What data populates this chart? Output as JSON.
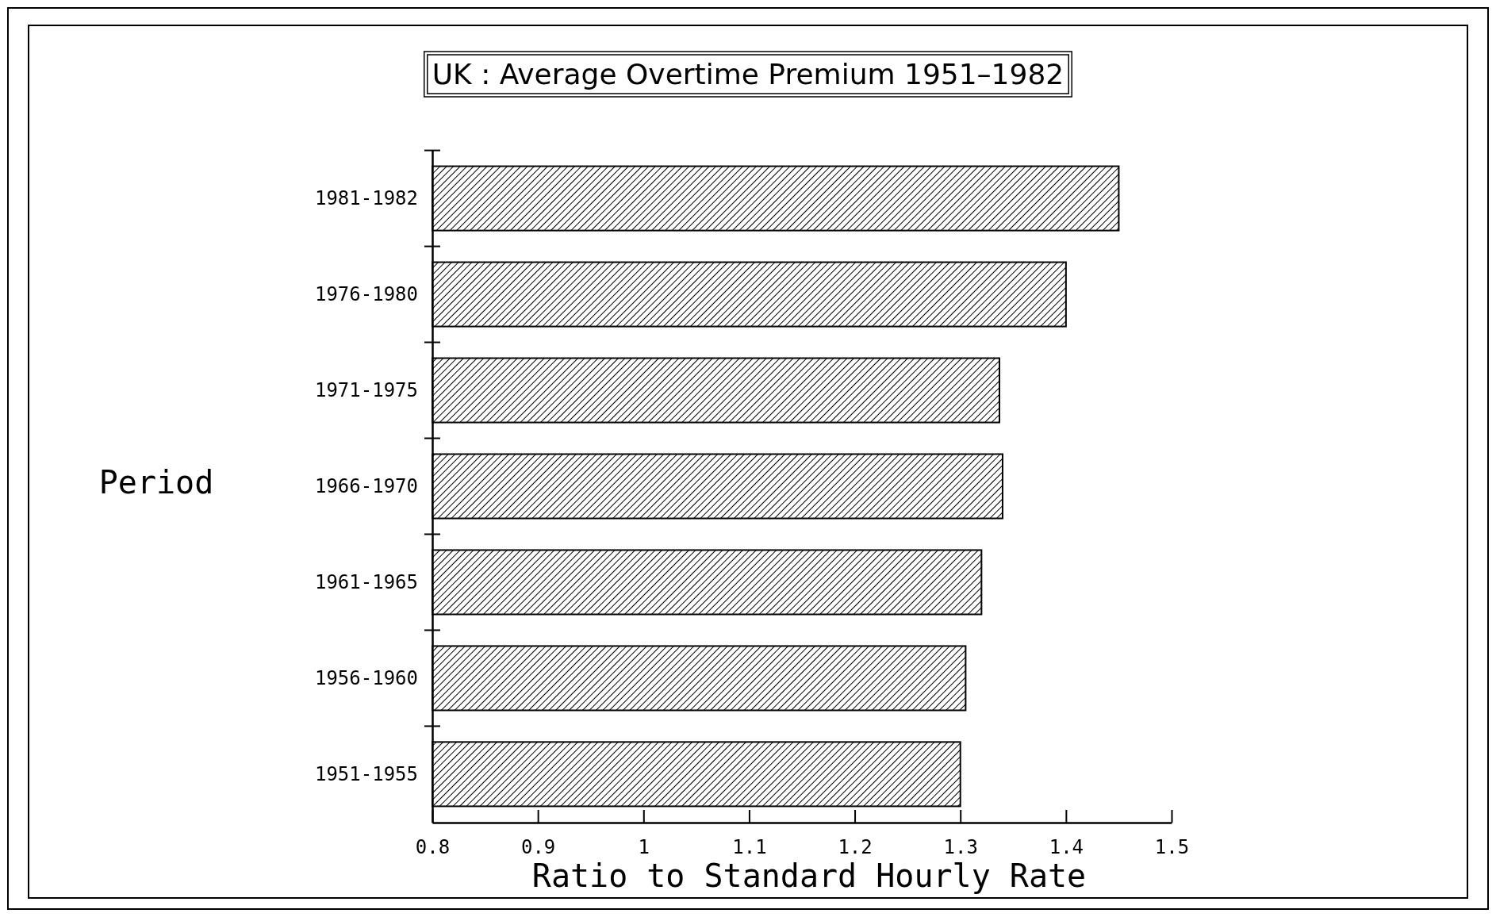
{
  "chart_data": {
    "type": "bar",
    "orientation": "horizontal",
    "title": "UK : Average Overtime Premium 1951–1982",
    "xlabel": "Ratio to Standard Hourly Rate",
    "ylabel": "Period",
    "categories": [
      "1981-1982",
      "1976-1980",
      "1971-1975",
      "1966-1970",
      "1961-1965",
      "1956-1960",
      "1951-1955"
    ],
    "values": [
      1.45,
      1.4,
      1.337,
      1.34,
      1.32,
      1.305,
      1.3
    ],
    "color": "#000000",
    "xlim": [
      0.8,
      1.5
    ],
    "xticks": [
      0.8,
      0.9,
      1,
      1.1,
      1.2,
      1.3,
      1.4,
      1.5
    ],
    "grid": false
  }
}
